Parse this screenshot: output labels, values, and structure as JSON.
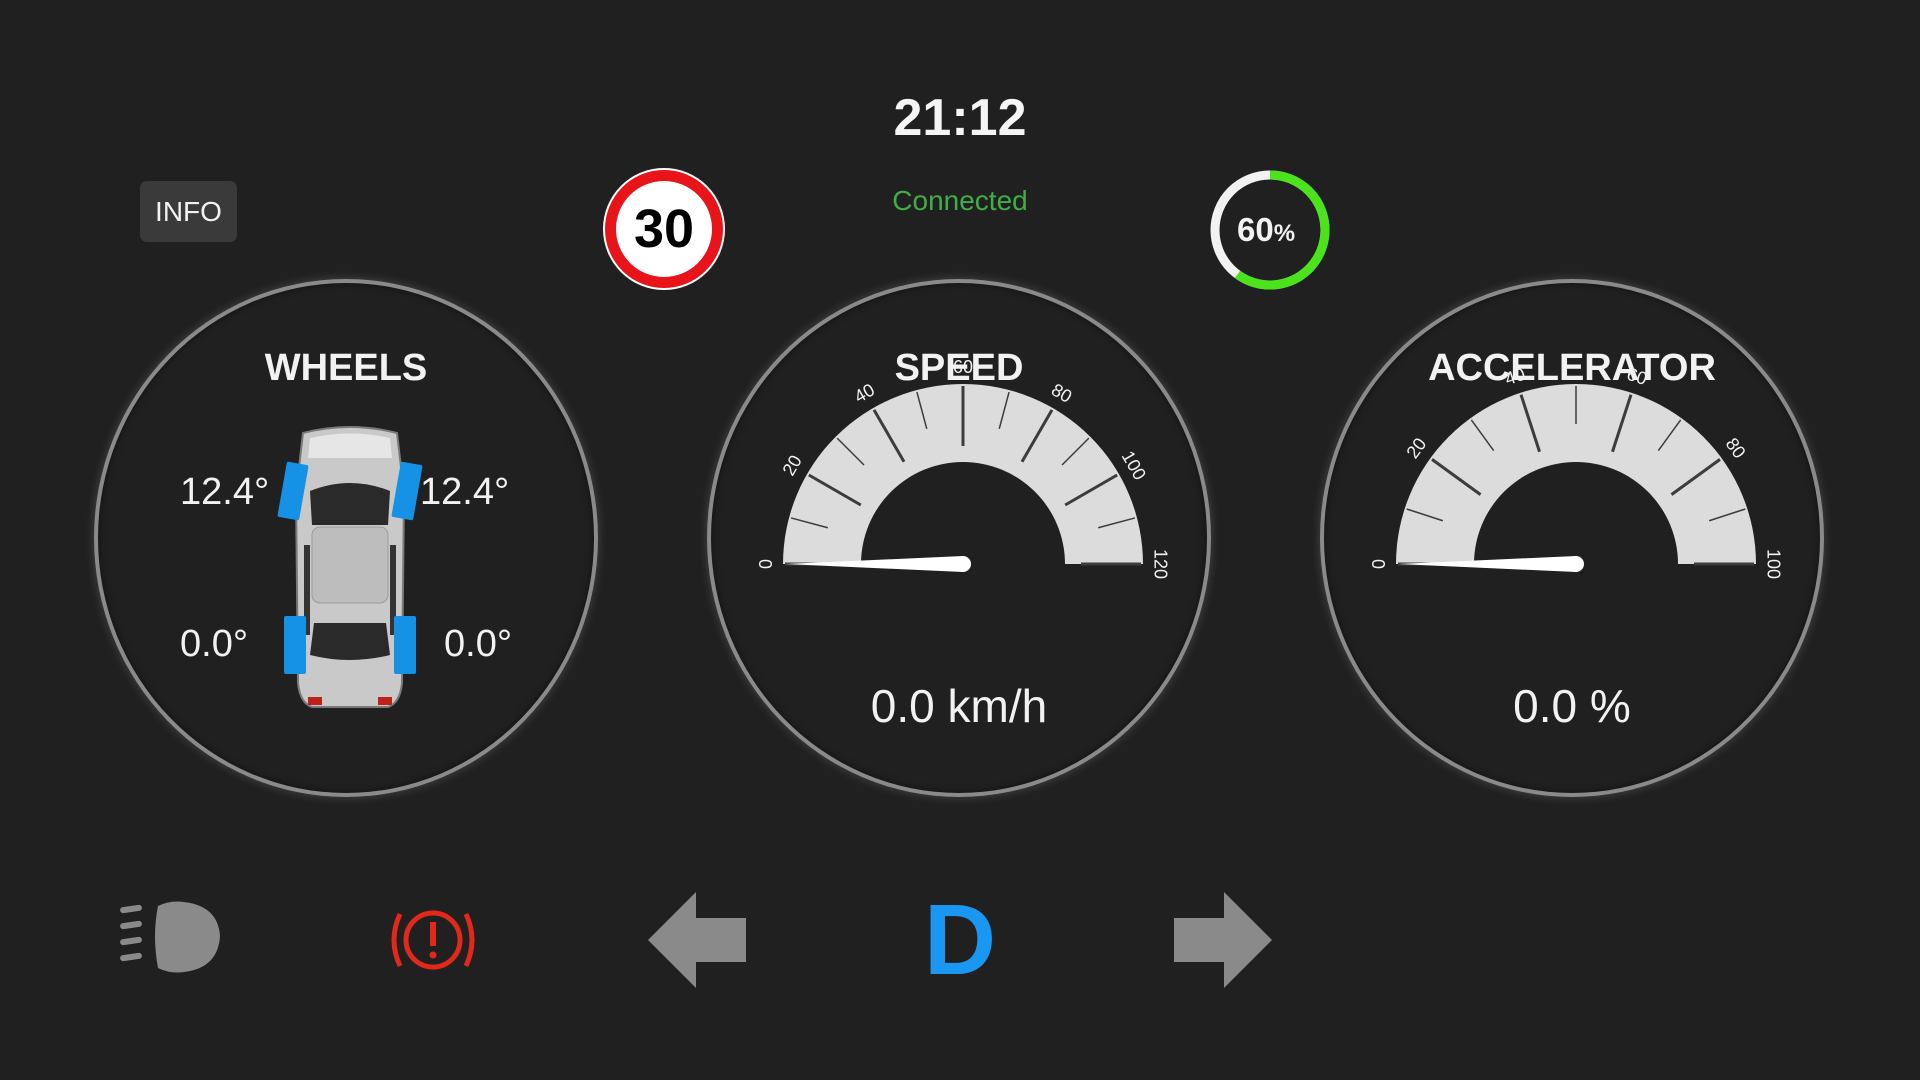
{
  "header": {
    "clock": "21:12",
    "connection_status": "Connected",
    "info_label": "INFO"
  },
  "speed_limit": {
    "value": "30"
  },
  "battery": {
    "percent_value": "60",
    "percent_symbol": "%",
    "level": 0.6,
    "ring_color": "#4be41a"
  },
  "wheels": {
    "title": "WHEELS",
    "front_left": "12.4°",
    "front_right": "12.4°",
    "rear_left": "0.0°",
    "rear_right": "0.0°",
    "wheel_color": "#1592e6"
  },
  "speed": {
    "title": "SPEED",
    "readout": "0.0 km/h",
    "value": 0,
    "min": 0,
    "max": 120,
    "ticks": [
      "0",
      "20",
      "40",
      "60",
      "80",
      "100",
      "120"
    ]
  },
  "accelerator": {
    "title": "ACCELERATOR",
    "readout": "0.0 %",
    "value": 0,
    "min": 0,
    "max": 100,
    "ticks": [
      "0",
      "20",
      "40",
      "60",
      "80",
      "100"
    ]
  },
  "indicators": {
    "headlight_icon": "headlight-icon",
    "brake_warning_icon": "brake-warning-icon",
    "brake_color": "#e3281b",
    "left_turn_icon": "left-arrow-icon",
    "right_turn_icon": "right-arrow-icon",
    "gear": "D",
    "gear_color": "#1a97f2",
    "inactive_color": "#8a8a8a"
  }
}
